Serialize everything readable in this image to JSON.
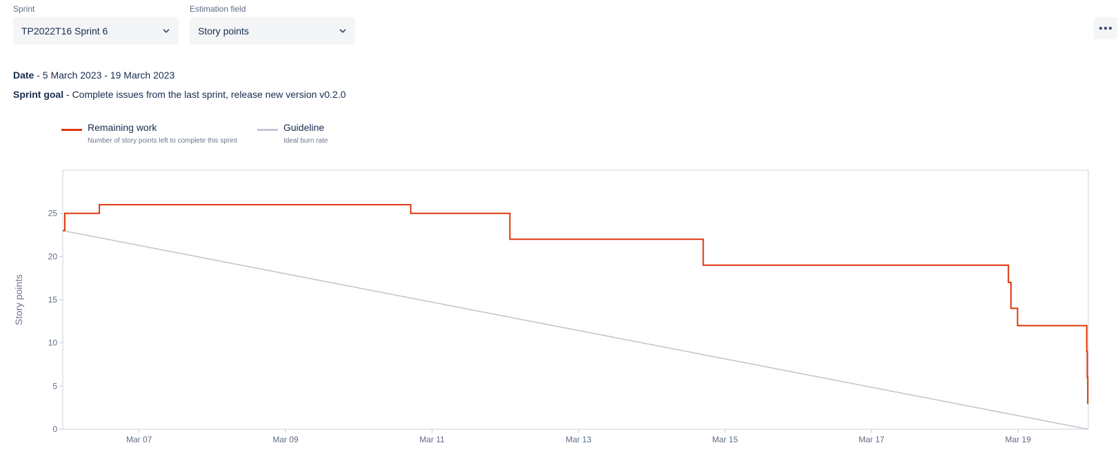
{
  "filters": {
    "sprint": {
      "label": "Sprint",
      "value": "TP2022T16 Sprint 6"
    },
    "estimation": {
      "label": "Estimation field",
      "value": "Story points"
    }
  },
  "info": {
    "date_label": "Date",
    "date_value": " - 5 March 2023 - 19 March 2023",
    "goal_label": "Sprint goal",
    "goal_value": " - Complete issues from the last sprint, release new version v0.2.0"
  },
  "legend": {
    "remaining": {
      "title": "Remaining work",
      "desc": "Number of story points left to complete this sprint",
      "color": "#de350b"
    },
    "guideline": {
      "title": "Guideline",
      "desc": "Ideal burn rate",
      "color": "#c1c7d0"
    }
  },
  "chart_data": {
    "type": "line",
    "ylabel": "Story points",
    "ylim": [
      0,
      30
    ],
    "y_ticks": [
      0,
      5,
      10,
      15,
      20,
      25
    ],
    "xlim": [
      "2023-03-05T23:00",
      "2023-03-19T23:00"
    ],
    "x_ticks": [
      {
        "date": "2023-03-07T00:00",
        "label": "Mar 07"
      },
      {
        "date": "2023-03-09T00:00",
        "label": "Mar 09"
      },
      {
        "date": "2023-03-11T00:00",
        "label": "Mar 11"
      },
      {
        "date": "2023-03-13T00:00",
        "label": "Mar 13"
      },
      {
        "date": "2023-03-15T00:00",
        "label": "Mar 15"
      },
      {
        "date": "2023-03-17T00:00",
        "label": "Mar 17"
      },
      {
        "date": "2023-03-19T00:00",
        "label": "Mar 19"
      }
    ],
    "series": [
      {
        "name": "Remaining work",
        "step": true,
        "points": [
          [
            "2023-03-05T23:00",
            23
          ],
          [
            "2023-03-05T23:40",
            25
          ],
          [
            "2023-03-06T11:00",
            26
          ],
          [
            "2023-03-10T17:00",
            25
          ],
          [
            "2023-03-12T01:30",
            22
          ],
          [
            "2023-03-14T16:50",
            19
          ],
          [
            "2023-03-18T20:50",
            17
          ],
          [
            "2023-03-18T21:40",
            14
          ],
          [
            "2023-03-18T23:50",
            12
          ],
          [
            "2023-03-19T22:30",
            9
          ],
          [
            "2023-03-19T22:40",
            6
          ],
          [
            "2023-03-19T22:50",
            3
          ],
          [
            "2023-03-19T23:00",
            3
          ]
        ]
      },
      {
        "name": "Guideline",
        "step": false,
        "points": [
          [
            "2023-03-05T23:00",
            23
          ],
          [
            "2023-03-19T23:00",
            0
          ]
        ]
      }
    ]
  }
}
